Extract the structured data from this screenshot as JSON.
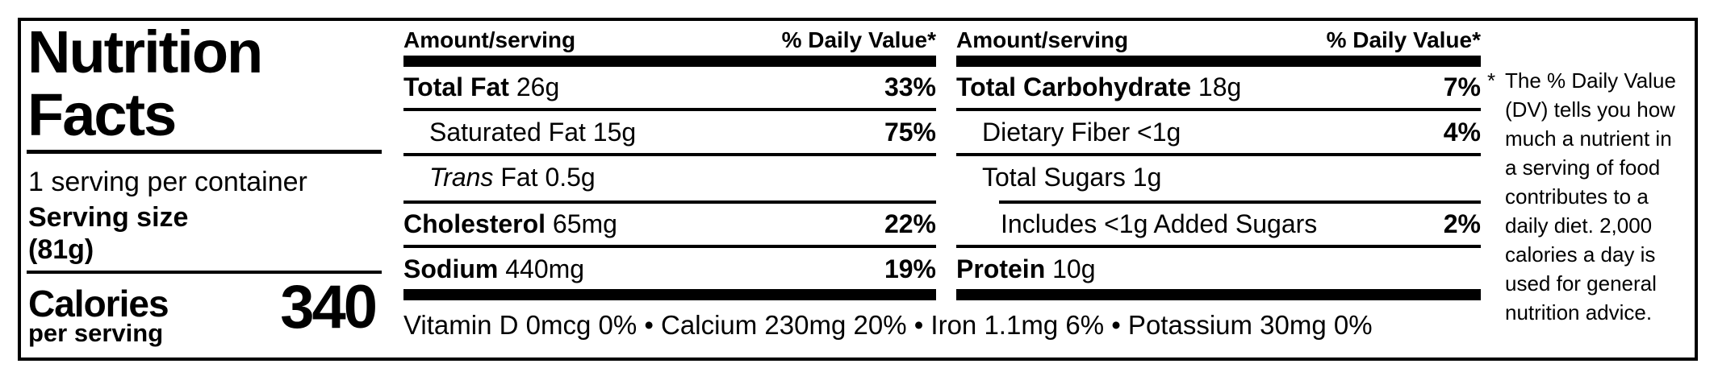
{
  "nutrition_label": {
    "title_line1": "Nutrition",
    "title_line2": "Facts",
    "servings_per_container": "1 serving per container",
    "serving_size_label": "Serving size",
    "serving_size_weight": "(81g)",
    "calories_label": "Calories",
    "calories_sublabel": "per serving",
    "calories_value": "340"
  },
  "column_header": {
    "amount": "Amount/serving",
    "daily_value": "% Daily Value*"
  },
  "columns": [
    {
      "rows": [
        {
          "name": "Total Fat",
          "amount": "26g",
          "dv": "33%"
        },
        {
          "name": "Saturated Fat",
          "amount": "15g",
          "dv": "75%"
        },
        {
          "name_italic": "Trans",
          "name": "Fat",
          "amount": "0.5g",
          "dv": ""
        },
        {
          "name": "Cholesterol",
          "amount": "65mg",
          "dv": "22%"
        },
        {
          "name": "Sodium",
          "amount": "440mg",
          "dv": "19%"
        }
      ]
    },
    {
      "rows": [
        {
          "name": "Total Carbohydrate",
          "amount": "18g",
          "dv": "7%"
        },
        {
          "name": "Dietary Fiber",
          "amount": "<1g",
          "dv": "4%"
        },
        {
          "name": "Total Sugars",
          "amount": "1g",
          "dv": ""
        },
        {
          "name": "Includes <1g Added Sugars",
          "amount": "",
          "dv": "2%"
        },
        {
          "name": "Protein",
          "amount": "10g",
          "dv": ""
        }
      ]
    }
  ],
  "micronutrients": "Vitamin D 0mcg 0% • Calcium 230mg 20% • Iron 1.1mg 6% • Potassium 30mg 0%",
  "footnote": {
    "symbol": "*",
    "lines": [
      "The % Daily Value",
      "(DV) tells you how",
      "much a nutrient in",
      "a serving of food",
      "contributes to a",
      "daily diet. 2,000",
      "calories a day is",
      "used for general",
      "nutrition advice."
    ]
  },
  "colors": {
    "ink": "#000000",
    "background": "#ffffff"
  }
}
